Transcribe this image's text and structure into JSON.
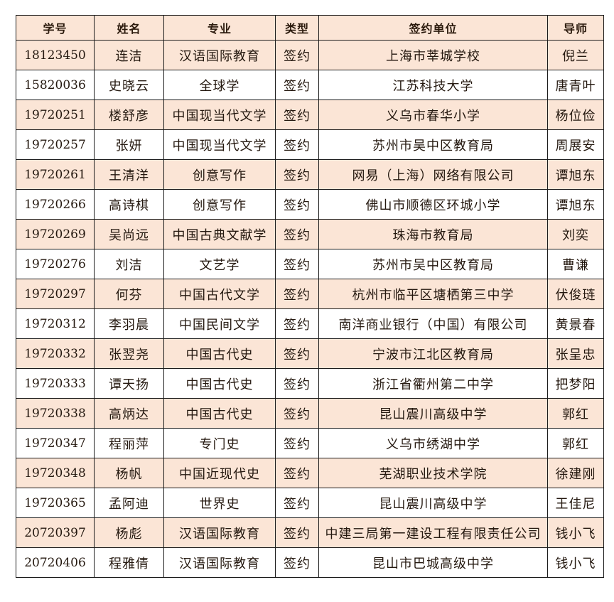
{
  "table": {
    "columns": [
      {
        "key": "student_id",
        "label": "学号"
      },
      {
        "key": "name",
        "label": "姓名"
      },
      {
        "key": "major",
        "label": "专业"
      },
      {
        "key": "type",
        "label": "类型"
      },
      {
        "key": "employer",
        "label": "签约单位"
      },
      {
        "key": "advisor",
        "label": "导师"
      }
    ],
    "rows": [
      [
        "18123450",
        "连洁",
        "汉语国际教育",
        "签约",
        "上海市莘城学校",
        "倪兰"
      ],
      [
        "15820036",
        "史晓云",
        "全球学",
        "签约",
        "江苏科技大学",
        "唐青叶"
      ],
      [
        "19720251",
        "楼舒彦",
        "中国现当代文学",
        "签约",
        "义乌市春华小学",
        "杨位俭"
      ],
      [
        "19720257",
        "张妍",
        "中国现当代文学",
        "签约",
        "苏州市吴中区教育局",
        "周展安"
      ],
      [
        "19720261",
        "王清洋",
        "创意写作",
        "签约",
        "网易（上海）网络有限公司",
        "谭旭东"
      ],
      [
        "19720266",
        "高诗棋",
        "创意写作",
        "签约",
        "佛山市顺德区环城小学",
        "谭旭东"
      ],
      [
        "19720269",
        "吴尚远",
        "中国古典文献学",
        "签约",
        "珠海市教育局",
        "刘奕"
      ],
      [
        "19720276",
        "刘洁",
        "文艺学",
        "签约",
        "苏州市吴中区教育局",
        "曹谦"
      ],
      [
        "19720297",
        "何芬",
        "中国古代文学",
        "签约",
        "杭州市临平区塘栖第三中学",
        "伏俊琏"
      ],
      [
        "19720312",
        "李羽晨",
        "中国民间文学",
        "签约",
        "南洋商业银行（中国）有限公司",
        "黄景春"
      ],
      [
        "19720332",
        "张翌尧",
        "中国古代史",
        "签约",
        "宁波市江北区教育局",
        "张呈忠"
      ],
      [
        "19720333",
        "谭天扬",
        "中国古代史",
        "签约",
        "浙江省衢州第二中学",
        "把梦阳"
      ],
      [
        "19720338",
        "高炳达",
        "中国古代史",
        "签约",
        "昆山震川高级中学",
        "郭红"
      ],
      [
        "19720347",
        "程丽萍",
        "专门史",
        "签约",
        "义乌市绣湖中学",
        "郭红"
      ],
      [
        "19720348",
        "杨帆",
        "中国近现代史",
        "签约",
        "芜湖职业技术学院",
        "徐建刚"
      ],
      [
        "19720365",
        "孟阿迪",
        "世界史",
        "签约",
        "昆山震川高级中学",
        "王佳尼"
      ],
      [
        "20720397",
        "杨彪",
        "汉语国际教育",
        "签约",
        "中建三局第一建设工程有限责任公司",
        "钱小飞"
      ],
      [
        "20720406",
        "程雅倩",
        "汉语国际教育",
        "签约",
        "昆山市巴城高级中学",
        "钱小飞"
      ]
    ],
    "colors": {
      "stripe_fill": "#fbe5d6",
      "plain_fill": "#ffffff",
      "border": "#1c1c1c",
      "text": "#24180f"
    }
  }
}
